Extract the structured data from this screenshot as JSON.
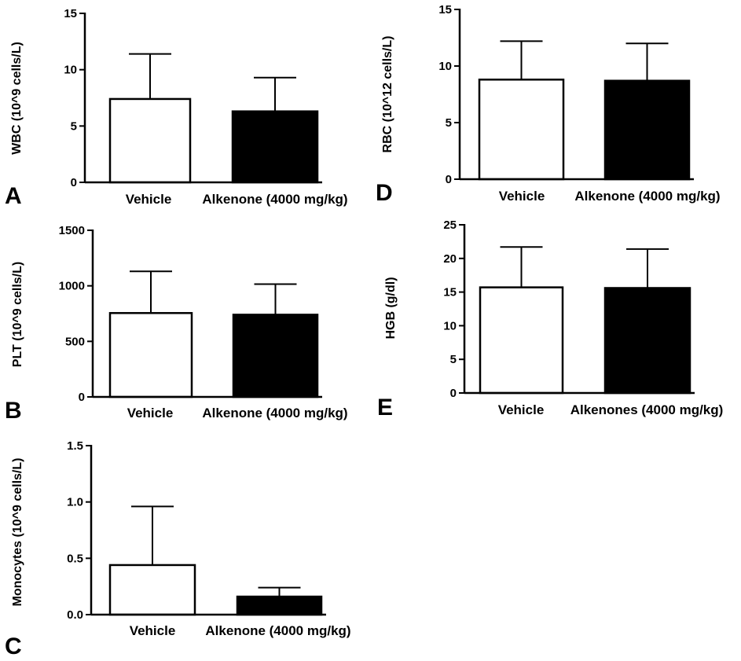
{
  "chart_data": [
    {
      "panel": "A",
      "type": "bar",
      "ylabel": "WBC (10^9 cells/L)",
      "ylim": [
        0,
        15
      ],
      "yticks": [
        "0",
        "5",
        "10",
        "15"
      ],
      "categories": [
        "Vehicle",
        "Alkenone (4000 mg/kg)"
      ],
      "values": [
        7.4,
        6.3
      ],
      "errors": [
        4.0,
        3.0
      ],
      "colors": [
        "#ffffff",
        "#000000"
      ]
    },
    {
      "panel": "B",
      "type": "bar",
      "ylabel": "PLT (10^9 cells/L)",
      "ylim": [
        0,
        1500
      ],
      "yticks": [
        "0",
        "500",
        "1000",
        "1500"
      ],
      "categories": [
        "Vehicle",
        "Alkenone (4000 mg/kg)"
      ],
      "values": [
        755,
        740
      ],
      "errors": [
        375,
        275
      ],
      "colors": [
        "#ffffff",
        "#000000"
      ]
    },
    {
      "panel": "C",
      "type": "bar",
      "ylabel": "Monocytes (10^9 cells/L)",
      "ylim": [
        0,
        1.5
      ],
      "yticks": [
        "0.0",
        "0.5",
        "1.0",
        "1.5"
      ],
      "categories": [
        "Vehicle",
        "Alkenone (4000 mg/kg)"
      ],
      "values": [
        0.44,
        0.16
      ],
      "errors": [
        0.52,
        0.08
      ],
      "colors": [
        "#ffffff",
        "#000000"
      ]
    },
    {
      "panel": "D",
      "type": "bar",
      "ylabel": "RBC (10^12 cells/L)",
      "ylim": [
        0,
        15
      ],
      "yticks": [
        "0",
        "5",
        "10",
        "15"
      ],
      "categories": [
        "Vehicle",
        "Alkenone (4000 mg/kg)"
      ],
      "values": [
        8.8,
        8.7
      ],
      "errors": [
        3.4,
        3.3
      ],
      "colors": [
        "#ffffff",
        "#000000"
      ]
    },
    {
      "panel": "E",
      "type": "bar",
      "ylabel": "HGB (g/dl)",
      "ylim": [
        0,
        25
      ],
      "yticks": [
        "0",
        "5",
        "10",
        "15",
        "20",
        "25"
      ],
      "categories": [
        "Vehicle",
        "Alkenones (4000 mg/kg)"
      ],
      "values": [
        15.7,
        15.6
      ],
      "errors": [
        6.0,
        5.8
      ],
      "colors": [
        "#ffffff",
        "#000000"
      ]
    }
  ]
}
